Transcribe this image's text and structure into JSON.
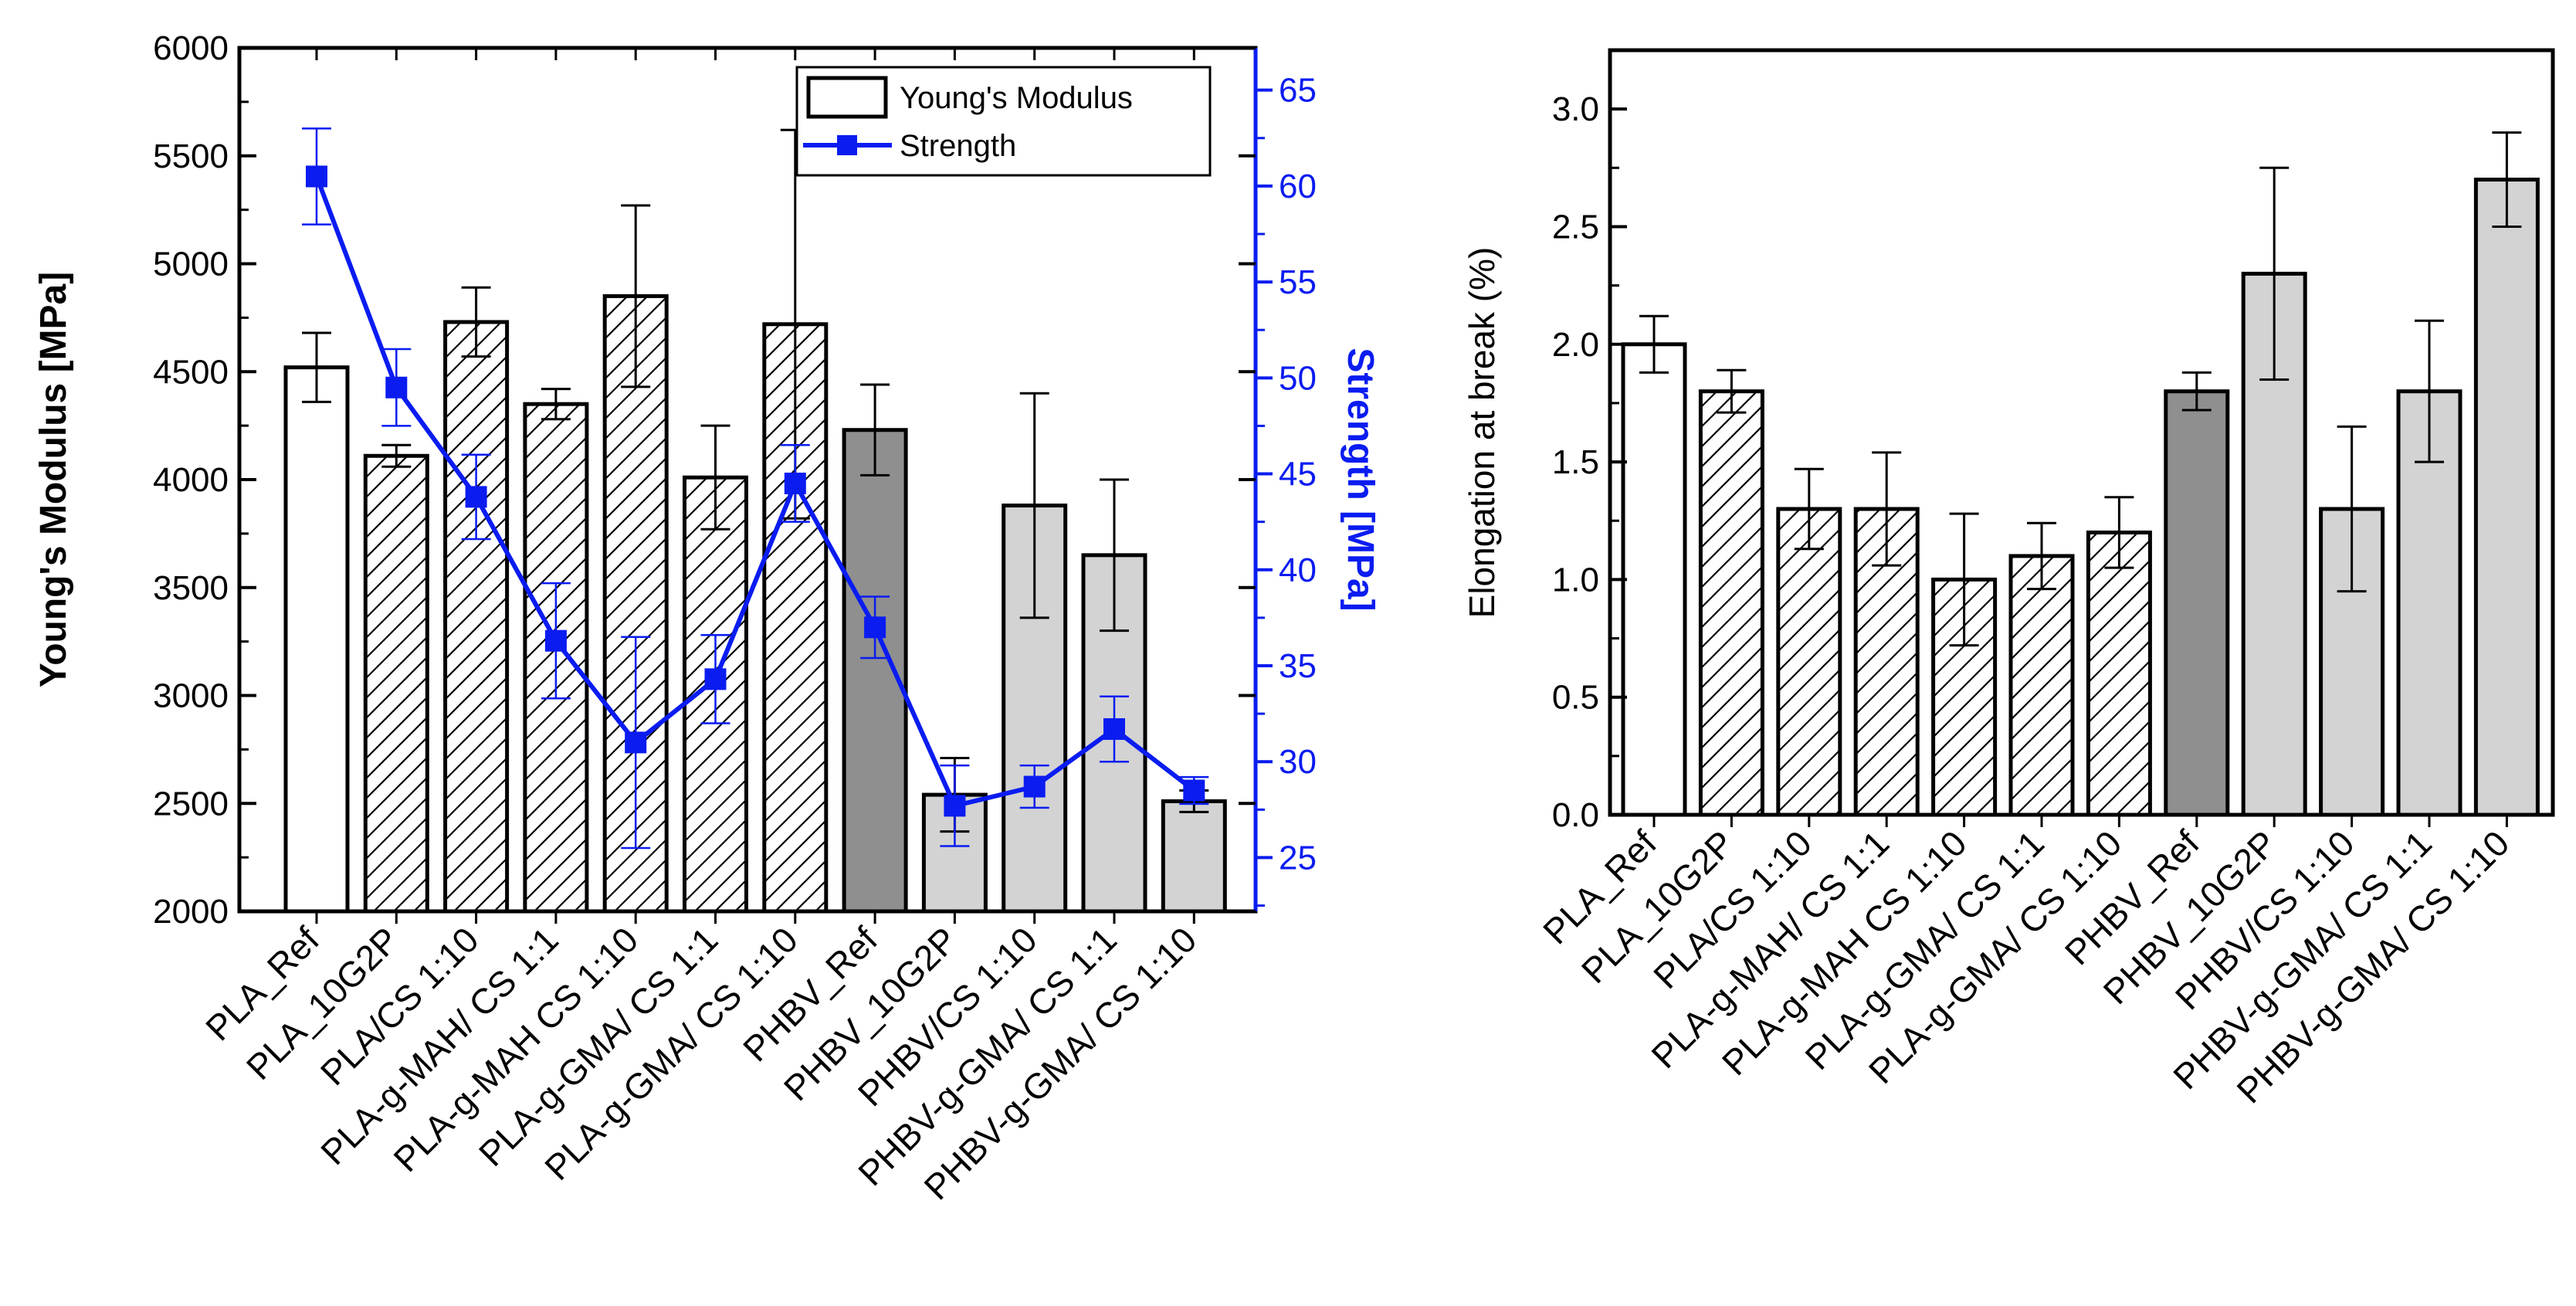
{
  "colors": {
    "black": "#000000",
    "blue": "#0a1cf0",
    "white": "#ffffff",
    "light_gray": "#d3d3d3",
    "dark_gray": "#8f8f8f"
  },
  "chart_data": [
    {
      "type": "bar",
      "panel": "left",
      "categories": [
        "PLA_Ref",
        "PLA_10G2P",
        "PLA/CS 1:10",
        "PLA-g-MAH/ CS 1:1",
        "PLA-g-MAH CS 1:10",
        "PLA-g-GMA/ CS 1:1",
        "PLA-g-GMA/ CS 1:10",
        "PHBV_Ref",
        "PHBV_10G2P",
        "PHBV/CS 1:10",
        "PHBV-g-GMA/ CS 1:1",
        "PHBV-g-GMA/ CS 1:10"
      ],
      "fills": [
        "white",
        "hatch",
        "hatch",
        "hatch",
        "hatch",
        "hatch",
        "hatch",
        "dark",
        "light",
        "light",
        "light",
        "light"
      ],
      "series": [
        {
          "name": "Young's Modulus",
          "kind": "bar",
          "axis": "left",
          "values": [
            4520,
            4110,
            4730,
            4350,
            4850,
            4010,
            4720,
            4230,
            2540,
            3880,
            3650,
            2510
          ],
          "errors": [
            160,
            50,
            160,
            70,
            420,
            240,
            900,
            210,
            170,
            520,
            350,
            50
          ]
        },
        {
          "name": "Strength",
          "kind": "line",
          "axis": "right",
          "values": [
            60.5,
            49.5,
            43.8,
            36.3,
            31.0,
            34.3,
            44.5,
            37.0,
            27.7,
            28.7,
            31.7,
            28.5
          ],
          "errors": [
            2.5,
            2.0,
            2.2,
            3.0,
            5.5,
            2.3,
            2.0,
            1.6,
            2.1,
            1.1,
            1.7,
            0.7
          ]
        }
      ],
      "ylabel": "Young's Modulus [MPa]",
      "ylim": [
        2000,
        6000
      ],
      "yticks": [
        "2000",
        "2500",
        "3000",
        "3500",
        "4000",
        "4500",
        "5000",
        "5500",
        "6000"
      ],
      "y2label": "Strength [MPa]",
      "y2lim": [
        22.2,
        67.2
      ],
      "y2ticks": [
        "25",
        "30",
        "35",
        "40",
        "45",
        "50",
        "55",
        "60",
        "65"
      ],
      "legend": {
        "position": "top-right",
        "entries": [
          "Young's Modulus",
          "Strength"
        ]
      },
      "grid": false
    },
    {
      "type": "bar",
      "panel": "right",
      "categories": [
        "PLA_Ref",
        "PLA_10G2P",
        "PLA/CS 1:10",
        "PLA-g-MAH/ CS 1:1",
        "PLA-g-MAH CS 1:10",
        "PLA-g-GMA/ CS 1:1",
        "PLA-g-GMA/ CS 1:10",
        "PHBV_Ref",
        "PHBV_10G2P",
        "PHBV/CS 1:10",
        "PHBV-g-GMA/ CS 1:1",
        "PHBV-g-GMA/ CS 1:10"
      ],
      "fills": [
        "white",
        "hatch",
        "hatch",
        "hatch",
        "hatch",
        "hatch",
        "hatch",
        "dark",
        "light",
        "light",
        "light",
        "light"
      ],
      "values": [
        2.0,
        1.8,
        1.3,
        1.3,
        1.0,
        1.1,
        1.2,
        1.8,
        2.3,
        1.3,
        1.8,
        2.7
      ],
      "errors": [
        0.12,
        0.09,
        0.17,
        0.24,
        0.28,
        0.14,
        0.15,
        0.08,
        0.45,
        0.35,
        0.3,
        0.2
      ],
      "ylabel": "Elongation at break (%)",
      "ylim": [
        0,
        3.25
      ],
      "yticks": [
        "0.0",
        "0.5",
        "1.0",
        "1.5",
        "2.0",
        "2.5",
        "3.0"
      ],
      "grid": false
    }
  ]
}
